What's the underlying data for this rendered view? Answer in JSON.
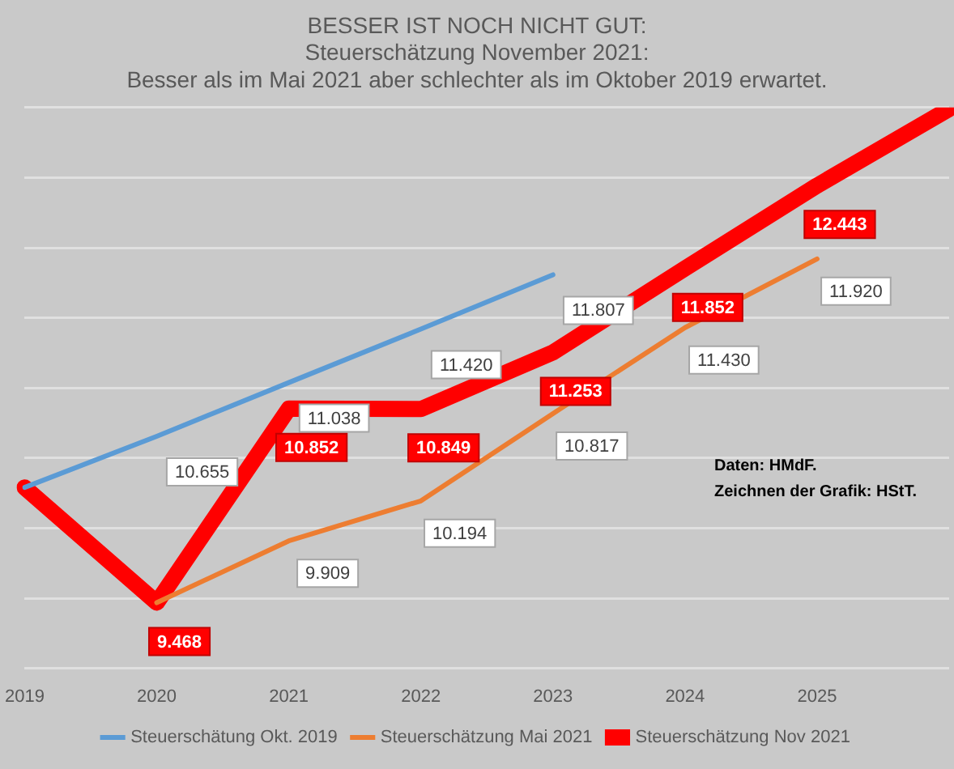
{
  "chart_data": {
    "type": "line",
    "title": "BESSER IST NOCH NICHT GUT:",
    "subtitle": "Steuerschätzung November 2021:\nBesser als im Mai 2021 aber schlechter als im Oktober 2019 erwartet.",
    "categories": [
      "2019",
      "2020",
      "2021",
      "2022",
      "2023",
      "2024",
      "2025",
      null
    ],
    "series": [
      {
        "name": "Steuerschätung Okt. 2019",
        "color": "#5b9bd5",
        "values": [
          10.29,
          10.655,
          11.038,
          11.42,
          11.807,
          null,
          null,
          null
        ],
        "value_labels": [
          null,
          "10.655",
          "11.038",
          "11.420",
          "11.807",
          null,
          null,
          null
        ]
      },
      {
        "name": "Steuerschätzung Mai 2021",
        "color": "#ed7d31",
        "values": [
          null,
          9.468,
          9.909,
          10.194,
          10.817,
          11.43,
          11.92,
          null
        ],
        "value_labels": [
          null,
          null,
          "9.909",
          "10.194",
          "10.817",
          "11.430",
          "11.920",
          null
        ]
      },
      {
        "name": "Steuerschätzung Nov 2021",
        "color": "#ff0000",
        "values": [
          10.29,
          9.468,
          10.852,
          10.849,
          11.253,
          11.852,
          12.443,
          12.99
        ],
        "value_labels": [
          null,
          "9.468",
          "10.852",
          "10.849",
          "11.253",
          "11.852",
          "12.443",
          null
        ]
      }
    ],
    "ylim": [
      9,
      13
    ],
    "yticks": [
      {
        "value": 9,
        "label": null
      },
      {
        "value": 9.5,
        "label": null
      },
      {
        "value": 10,
        "label": null
      },
      {
        "value": 10.5,
        "label": null
      },
      {
        "value": 11,
        "label": null
      },
      {
        "value": 11.5,
        "label": null
      },
      {
        "value": 12,
        "label": null
      },
      {
        "value": 12.5,
        "label": null
      },
      {
        "value": 13,
        "label": null
      }
    ],
    "grid": "y",
    "tick_labels": "x",
    "legend": "bottom",
    "marker": "none",
    "line_style": "solid",
    "annotations": [
      "Daten: HMdF.",
      "Zeichnen der Grafik: HStT."
    ]
  }
}
